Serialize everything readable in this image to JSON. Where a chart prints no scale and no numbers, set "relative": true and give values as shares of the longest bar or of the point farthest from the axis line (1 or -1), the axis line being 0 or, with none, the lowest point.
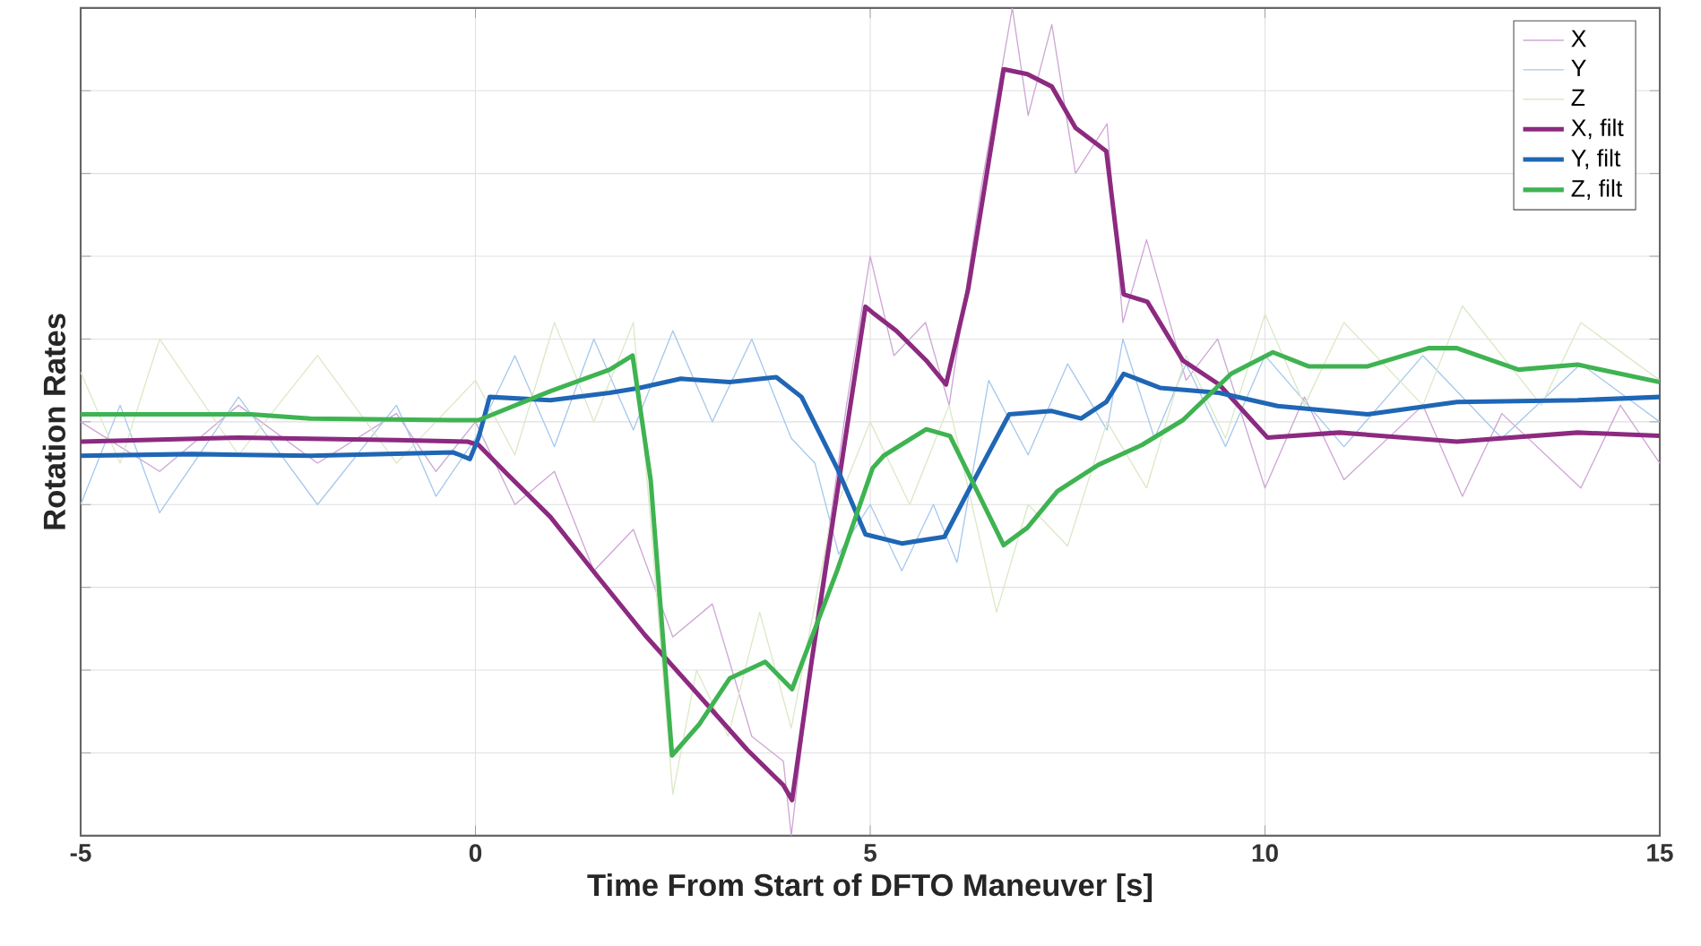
{
  "chart_data": {
    "type": "line",
    "xlabel": "Time From Start of DFTO Maneuver [s]",
    "ylabel": "Rotation Rates",
    "relative": true,
    "xlim": [
      -5,
      15
    ],
    "xticks": [
      -5,
      0,
      5,
      10,
      15
    ],
    "grid": true,
    "legend": "top right",
    "marker": "none",
    "line_style": "solid",
    "series": [
      {
        "name": "X",
        "color": "#cfa6d6",
        "x": [
          -5,
          -4,
          -3,
          -2,
          -1,
          -0.5,
          0,
          0.5,
          1,
          1.5,
          2,
          2.5,
          3,
          3.5,
          3.9,
          4.0,
          4.3,
          4.7,
          5.0,
          5.3,
          5.7,
          6.0,
          6.4,
          6.8,
          7.0,
          7.3,
          7.6,
          8.0,
          8.2,
          8.5,
          9.0,
          9.4,
          10,
          10.5,
          11,
          12,
          12.5,
          13,
          14,
          14.5,
          15
        ],
        "values": [
          0.5,
          0.44,
          0.52,
          0.45,
          0.51,
          0.44,
          0.5,
          0.4,
          0.44,
          0.32,
          0.37,
          0.24,
          0.28,
          0.12,
          0.09,
          0.0,
          0.25,
          0.52,
          0.7,
          0.58,
          0.62,
          0.52,
          0.78,
          1.0,
          0.87,
          0.98,
          0.8,
          0.86,
          0.62,
          0.72,
          0.55,
          0.6,
          0.42,
          0.53,
          0.43,
          0.52,
          0.41,
          0.51,
          0.42,
          0.52,
          0.45
        ]
      },
      {
        "name": "Y",
        "color": "#a6c8ec",
        "x": [
          -5,
          -4.5,
          -4,
          -3,
          -2,
          -1,
          -0.5,
          0,
          0.5,
          1,
          1.5,
          2,
          2.5,
          3,
          3.5,
          4,
          4.3,
          4.6,
          5,
          5.4,
          5.8,
          6.1,
          6.5,
          7,
          7.5,
          8,
          8.2,
          8.6,
          9,
          9.5,
          10,
          11,
          12,
          13,
          14,
          15
        ],
        "values": [
          0.4,
          0.52,
          0.39,
          0.53,
          0.4,
          0.52,
          0.41,
          0.48,
          0.58,
          0.47,
          0.6,
          0.49,
          0.61,
          0.5,
          0.6,
          0.48,
          0.45,
          0.34,
          0.4,
          0.32,
          0.4,
          0.33,
          0.55,
          0.46,
          0.57,
          0.49,
          0.6,
          0.48,
          0.57,
          0.47,
          0.58,
          0.47,
          0.58,
          0.48,
          0.57,
          0.5
        ]
      },
      {
        "name": "Z",
        "color": "#dbe9c6",
        "x": [
          -5,
          -4.5,
          -4,
          -3,
          -2,
          -1,
          0,
          0.5,
          1,
          1.5,
          2,
          2.2,
          2.5,
          2.8,
          3.2,
          3.6,
          4,
          4.5,
          5,
          5.5,
          6,
          6.6,
          7,
          7.5,
          8,
          8.5,
          9,
          9.5,
          10,
          10.5,
          11,
          12,
          12.5,
          13.5,
          14,
          15
        ],
        "values": [
          0.56,
          0.45,
          0.6,
          0.46,
          0.58,
          0.45,
          0.55,
          0.46,
          0.62,
          0.5,
          0.62,
          0.4,
          0.05,
          0.2,
          0.12,
          0.27,
          0.13,
          0.38,
          0.5,
          0.4,
          0.52,
          0.27,
          0.4,
          0.35,
          0.5,
          0.42,
          0.58,
          0.48,
          0.63,
          0.52,
          0.62,
          0.52,
          0.64,
          0.52,
          0.62,
          0.55
        ]
      },
      {
        "name": "X, filt",
        "color": "#8c2a80",
        "x": [
          -5,
          -3,
          -1,
          -0.1,
          0.04,
          0.4,
          0.95,
          1.54,
          2.15,
          2.76,
          3.44,
          3.9,
          4.01,
          4.26,
          4.72,
          4.94,
          5.03,
          5.33,
          5.71,
          5.96,
          6.24,
          6.69,
          6.99,
          7.3,
          7.6,
          7.99,
          8.21,
          8.51,
          8.96,
          9.42,
          10.03,
          10.94,
          12.43,
          13.96,
          15
        ],
        "values": [
          0.476,
          0.481,
          0.478,
          0.476,
          0.472,
          0.437,
          0.385,
          0.314,
          0.242,
          0.177,
          0.104,
          0.061,
          0.043,
          0.212,
          0.502,
          0.639,
          0.632,
          0.61,
          0.574,
          0.545,
          0.66,
          0.926,
          0.92,
          0.905,
          0.855,
          0.827,
          0.654,
          0.645,
          0.574,
          0.545,
          0.481,
          0.487,
          0.476,
          0.487,
          0.483
        ]
      },
      {
        "name": "Y, filt",
        "color": "#1f66b5",
        "x": [
          -5,
          -3.59,
          -2.09,
          -0.28,
          -0.07,
          0.04,
          0.18,
          0.95,
          1.7,
          2.08,
          2.6,
          3.22,
          3.81,
          4.13,
          4.58,
          4.94,
          5.4,
          5.94,
          6.24,
          6.76,
          7.3,
          7.67,
          7.99,
          8.21,
          8.67,
          9.42,
          10.16,
          11.3,
          12.43,
          13.96,
          15
        ],
        "values": [
          0.459,
          0.461,
          0.459,
          0.463,
          0.455,
          0.481,
          0.53,
          0.526,
          0.535,
          0.541,
          0.552,
          0.548,
          0.554,
          0.53,
          0.444,
          0.364,
          0.353,
          0.361,
          0.416,
          0.509,
          0.513,
          0.504,
          0.524,
          0.558,
          0.541,
          0.535,
          0.519,
          0.509,
          0.524,
          0.526,
          0.53
        ]
      },
      {
        "name": "Z, filt",
        "color": "#3fb352",
        "x": [
          -5,
          -2.84,
          -2.09,
          -0.28,
          0.04,
          0.95,
          1.7,
          1.99,
          2.22,
          2.49,
          2.83,
          3.22,
          3.67,
          4.01,
          4.58,
          5.03,
          5.17,
          5.71,
          6.01,
          6.69,
          6.99,
          7.37,
          7.89,
          8.44,
          8.96,
          9.57,
          10.1,
          10.55,
          11.3,
          12.07,
          12.43,
          13.21,
          13.96,
          15
        ],
        "values": [
          0.509,
          0.509,
          0.504,
          0.502,
          0.502,
          0.537,
          0.563,
          0.58,
          0.429,
          0.097,
          0.134,
          0.19,
          0.21,
          0.177,
          0.32,
          0.444,
          0.459,
          0.491,
          0.483,
          0.351,
          0.372,
          0.416,
          0.448,
          0.472,
          0.502,
          0.558,
          0.584,
          0.567,
          0.567,
          0.589,
          0.589,
          0.563,
          0.569,
          0.548
        ]
      }
    ]
  }
}
